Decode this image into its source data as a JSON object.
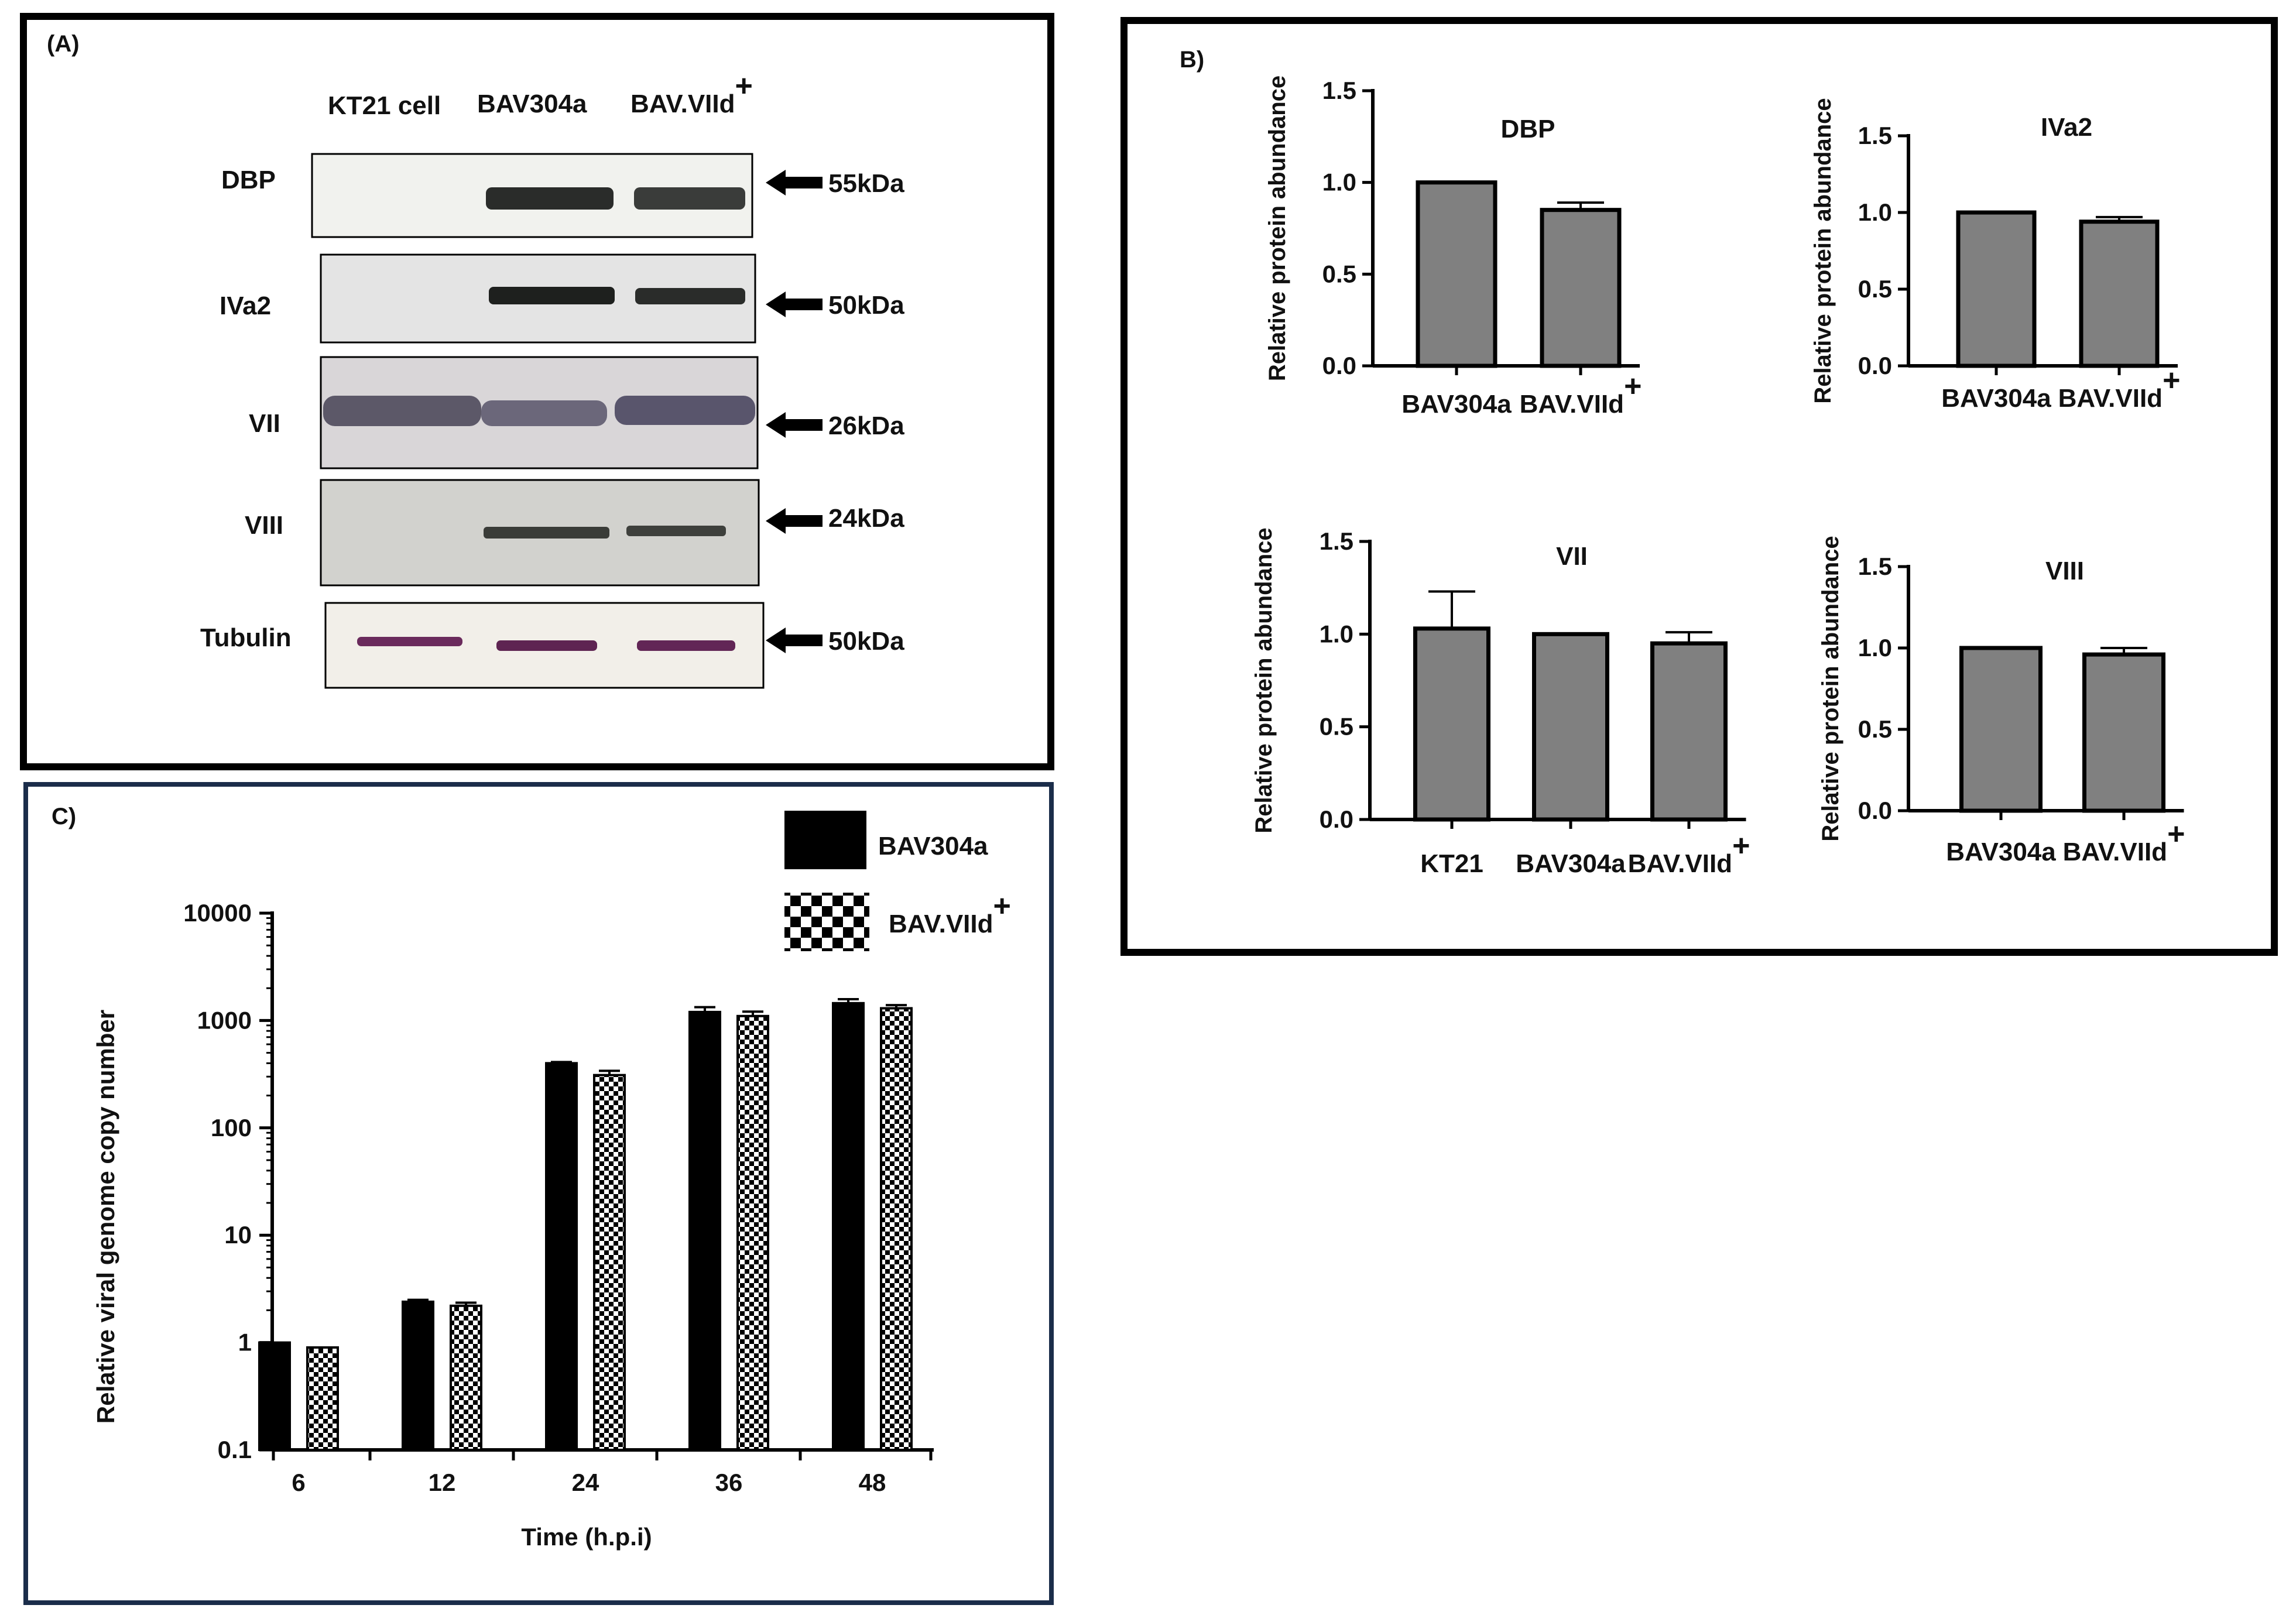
{
  "panelA": {
    "label": "(A)",
    "lanes": [
      "KT21 cell",
      "BAV304a",
      "BAV.VIId"
    ],
    "superscript": "+",
    "blots": [
      {
        "name": "DBP",
        "size": "55kDa"
      },
      {
        "name": "IVa2",
        "size": "50kDa"
      },
      {
        "name": "VII",
        "size": "26kDa"
      },
      {
        "name": "VIII",
        "size": "24kDa"
      },
      {
        "name": "Tubulin",
        "size": "50kDa"
      }
    ]
  },
  "panelB": {
    "label": "B)",
    "ylabel": "Relative protein abundance",
    "yticks": [
      "0.0",
      "0.5",
      "1.0",
      "1.5"
    ],
    "superscript": "+"
  },
  "panelC": {
    "label": "C)",
    "ylabel": "Relative viral genome copy number",
    "xlabel": "Time (h.p.i)",
    "yticks": [
      "0.1",
      "1",
      "10",
      "100",
      "1000",
      "10000"
    ],
    "legend": [
      "BAV304a",
      "BAV.VIId"
    ],
    "superscript": "+"
  },
  "chart_data": [
    {
      "type": "bar",
      "title": "DBP",
      "categories": [
        "BAV304a",
        "BAV.VIId"
      ],
      "values": [
        1.0,
        0.85
      ],
      "errors": [
        0,
        0.04
      ],
      "ylabel": "Relative protein abundance",
      "ylim": [
        0,
        1.5
      ]
    },
    {
      "type": "bar",
      "title": "IVa2",
      "categories": [
        "BAV304a",
        "BAV.VIId"
      ],
      "values": [
        1.0,
        0.94
      ],
      "errors": [
        0,
        0.03
      ],
      "ylabel": "Relative protein abundance",
      "ylim": [
        0,
        1.5
      ]
    },
    {
      "type": "bar",
      "title": "VII",
      "categories": [
        "KT21",
        "BAV304a",
        "BAV.VIId"
      ],
      "values": [
        1.03,
        1.0,
        0.95
      ],
      "errors": [
        0.2,
        0,
        0.06
      ],
      "ylabel": "Relative protein abundance",
      "ylim": [
        0,
        1.5
      ]
    },
    {
      "type": "bar",
      "title": "VIII",
      "categories": [
        "BAV304a",
        "BAV.VIId"
      ],
      "values": [
        1.0,
        0.96
      ],
      "errors": [
        0,
        0.04
      ],
      "ylabel": "Relative protein abundance",
      "ylim": [
        0,
        1.5
      ]
    },
    {
      "type": "bar",
      "scale": "log",
      "title": "",
      "categories": [
        "6",
        "12",
        "24",
        "36",
        "48"
      ],
      "series": [
        {
          "name": "BAV304a",
          "values": [
            1.0,
            2.4,
            400,
            1200,
            1450
          ],
          "errors": [
            0,
            0.1,
            10,
            130,
            130
          ]
        },
        {
          "name": "BAV.VIId",
          "values": [
            0.9,
            2.2,
            310,
            1100,
            1300
          ],
          "errors": [
            0,
            0.15,
            30,
            110,
            90
          ]
        }
      ],
      "xlabel": "Time (h.p.i)",
      "ylabel": "Relative viral genome copy number",
      "ylim": [
        0.1,
        10000
      ]
    }
  ]
}
